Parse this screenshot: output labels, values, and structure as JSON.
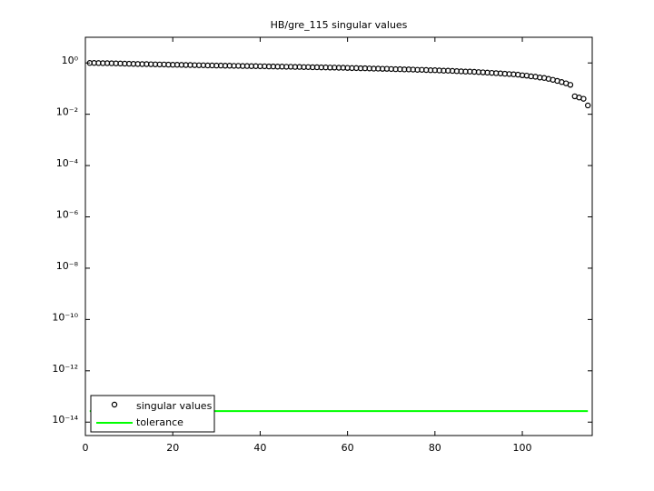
{
  "chart_data": {
    "type": "scatter",
    "title": "HB/gre_115 singular values",
    "yscale": "log",
    "xlim": [
      0,
      116
    ],
    "ylim": [
      3e-15,
      10
    ],
    "xticks": [
      0,
      20,
      40,
      60,
      80,
      100
    ],
    "yticks": [
      {
        "value": 1,
        "label": "10⁰"
      },
      {
        "value": 0.01,
        "label": "10⁻²"
      },
      {
        "value": 0.0001,
        "label": "10⁻⁴"
      },
      {
        "value": 1e-06,
        "label": "10⁻⁶"
      },
      {
        "value": 1e-08,
        "label": "10⁻⁸"
      },
      {
        "value": 1e-10,
        "label": "10⁻¹⁰"
      },
      {
        "value": 1e-12,
        "label": "10⁻¹²"
      },
      {
        "value": 1e-14,
        "label": "10⁻¹⁴"
      }
    ],
    "legend": "lower left",
    "series": [
      {
        "name": "singular values",
        "color": "#000000",
        "marker": "circle",
        "x": [
          1,
          2,
          3,
          4,
          5,
          6,
          7,
          8,
          9,
          10,
          11,
          12,
          13,
          14,
          15,
          16,
          17,
          18,
          19,
          20,
          21,
          22,
          23,
          24,
          25,
          26,
          27,
          28,
          29,
          30,
          31,
          32,
          33,
          34,
          35,
          36,
          37,
          38,
          39,
          40,
          41,
          42,
          43,
          44,
          45,
          46,
          47,
          48,
          49,
          50,
          51,
          52,
          53,
          54,
          55,
          56,
          57,
          58,
          59,
          60,
          61,
          62,
          63,
          64,
          65,
          66,
          67,
          68,
          69,
          70,
          71,
          72,
          73,
          74,
          75,
          76,
          77,
          78,
          79,
          80,
          81,
          82,
          83,
          84,
          85,
          86,
          87,
          88,
          89,
          90,
          91,
          92,
          93,
          94,
          95,
          96,
          97,
          98,
          99,
          100,
          101,
          102,
          103,
          104,
          105,
          106,
          107,
          108,
          109,
          110,
          111,
          112,
          113,
          114,
          115
        ],
        "values": [
          1.0,
          1.0,
          0.99,
          0.98,
          0.98,
          0.97,
          0.96,
          0.95,
          0.94,
          0.93,
          0.92,
          0.91,
          0.9,
          0.9,
          0.89,
          0.88,
          0.87,
          0.87,
          0.86,
          0.85,
          0.85,
          0.84,
          0.83,
          0.83,
          0.82,
          0.81,
          0.81,
          0.8,
          0.8,
          0.79,
          0.79,
          0.78,
          0.78,
          0.77,
          0.77,
          0.76,
          0.76,
          0.75,
          0.75,
          0.74,
          0.74,
          0.73,
          0.73,
          0.72,
          0.72,
          0.71,
          0.71,
          0.7,
          0.7,
          0.69,
          0.69,
          0.68,
          0.68,
          0.67,
          0.67,
          0.66,
          0.66,
          0.65,
          0.65,
          0.64,
          0.63,
          0.63,
          0.62,
          0.62,
          0.61,
          0.6,
          0.6,
          0.59,
          0.59,
          0.58,
          0.57,
          0.57,
          0.56,
          0.56,
          0.55,
          0.54,
          0.54,
          0.53,
          0.52,
          0.52,
          0.51,
          0.5,
          0.5,
          0.49,
          0.48,
          0.47,
          0.46,
          0.46,
          0.45,
          0.44,
          0.43,
          0.42,
          0.41,
          0.4,
          0.39,
          0.38,
          0.37,
          0.36,
          0.35,
          0.33,
          0.32,
          0.3,
          0.29,
          0.27,
          0.26,
          0.24,
          0.22,
          0.2,
          0.18,
          0.16,
          0.14,
          0.05,
          0.045,
          0.04,
          0.022
        ]
      },
      {
        "name": "tolerance",
        "color": "#00ff00",
        "marker": "line",
        "x": [
          1,
          115
        ],
        "values": [
          2.7e-14,
          2.7e-14
        ]
      }
    ]
  }
}
